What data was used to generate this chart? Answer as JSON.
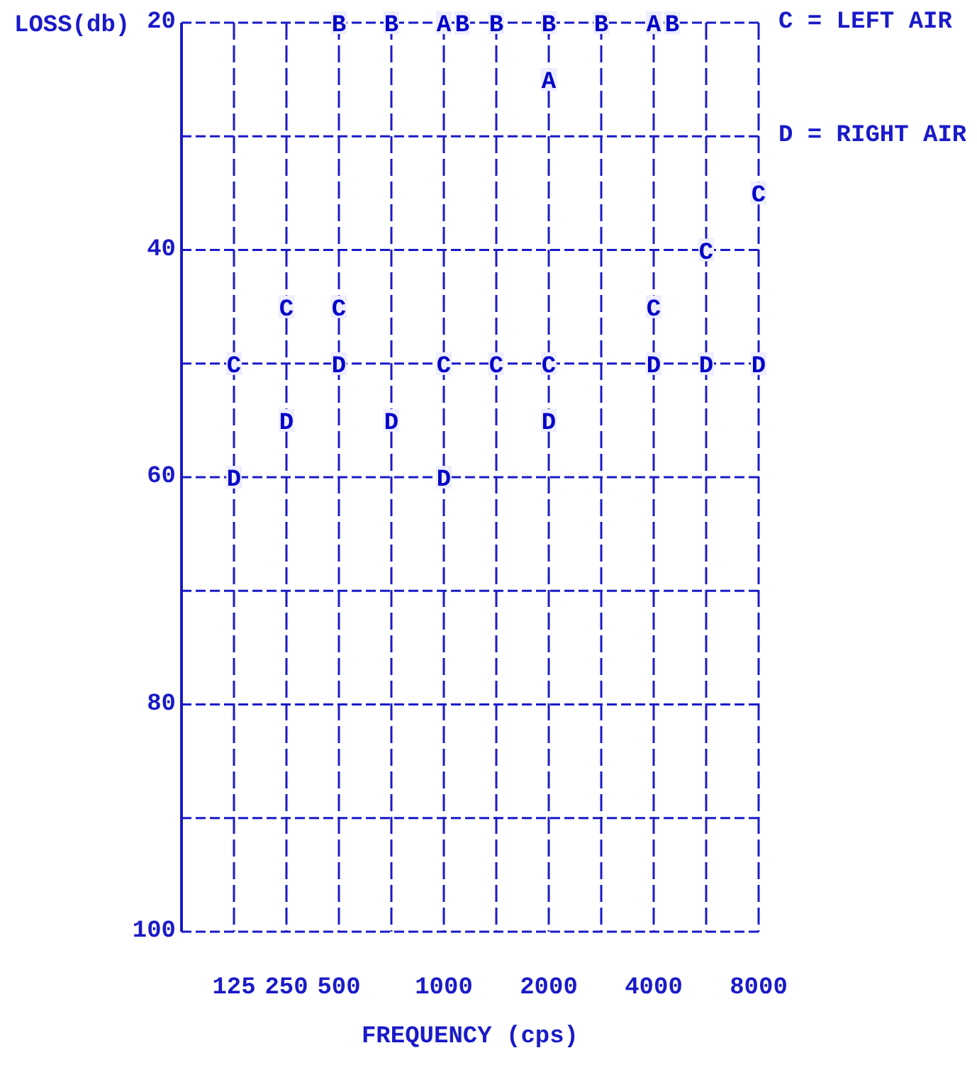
{
  "chart_data": {
    "type": "scatter",
    "ylabel": "LOSS(db)",
    "xlabel": "FREQUENCY (cps)",
    "categories": [
      "125",
      "250",
      "500",
      null,
      "1000",
      null,
      "2000",
      null,
      "4000",
      null,
      "8000"
    ],
    "ylim": [
      100,
      20
    ],
    "yticks": [
      20,
      {
        "value": 30,
        "label": null
      },
      40,
      {
        "value": 50,
        "label": null
      },
      60,
      {
        "value": 70,
        "label": null
      },
      80,
      {
        "value": 90,
        "label": null
      },
      100
    ],
    "grid": true,
    "annotations": [
      "C = LEFT AIR",
      "D = RIGHT AIR"
    ],
    "series": [
      {
        "name": "A",
        "color": "#0000c8",
        "values": [
          null,
          null,
          null,
          null,
          20,
          null,
          25,
          null,
          20,
          null,
          null
        ]
      },
      {
        "name": "B",
        "color": "#0000c8",
        "values": [
          null,
          null,
          20,
          20,
          20,
          20,
          20,
          20,
          20,
          null,
          null
        ]
      },
      {
        "name": "C",
        "color": "#0000c8",
        "values": [
          50,
          45,
          45,
          null,
          50,
          50,
          50,
          null,
          45,
          40,
          35
        ]
      },
      {
        "name": "D",
        "color": "#0000c8",
        "values": [
          60,
          55,
          50,
          55,
          60,
          null,
          55,
          null,
          50,
          50,
          50
        ]
      }
    ]
  }
}
